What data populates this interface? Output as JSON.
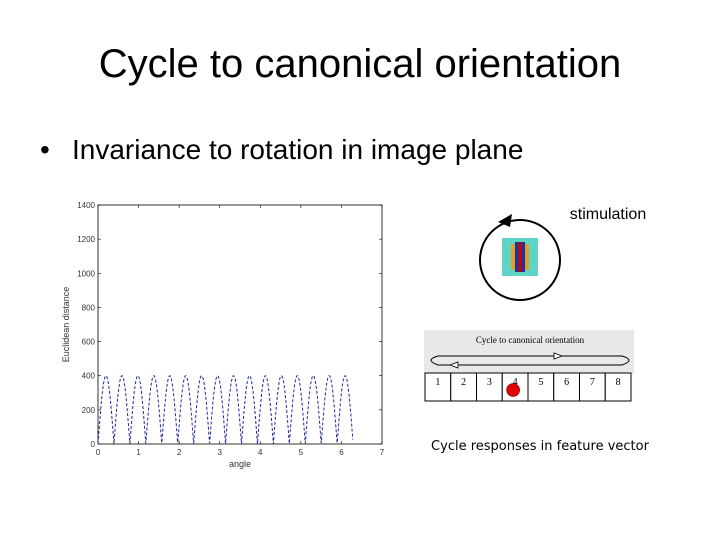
{
  "slide": {
    "title": "Cycle to canonical orientation",
    "bullet": "Invariance to rotation in image plane"
  },
  "chart_data": {
    "type": "line",
    "xlabel": "angle",
    "ylabel": "Euclidean distance",
    "xlim": [
      0,
      7
    ],
    "ylim": [
      0,
      1400
    ],
    "x_ticks": [
      "0",
      "1",
      "2",
      "3",
      "4",
      "5",
      "6",
      "7"
    ],
    "y_ticks": [
      "0",
      "200",
      "400",
      "600",
      "800",
      "1000",
      "1200",
      "1400"
    ],
    "series": [
      {
        "period": 0.393,
        "min": 0,
        "max": 400,
        "x_start": 0,
        "x_end": 6.28,
        "color": "#1f2a9c",
        "style": "dashed"
      }
    ],
    "grid": false
  },
  "diagram": {
    "stimulation_label": "stimulation",
    "cycle_title": "Cycle to canonical orientation",
    "cells": [
      "1",
      "2",
      "3",
      "4",
      "5",
      "6",
      "7",
      "8"
    ],
    "marker_cell": 4,
    "caption": "Cycle responses in feature vector",
    "marker_color": "#e00000"
  }
}
